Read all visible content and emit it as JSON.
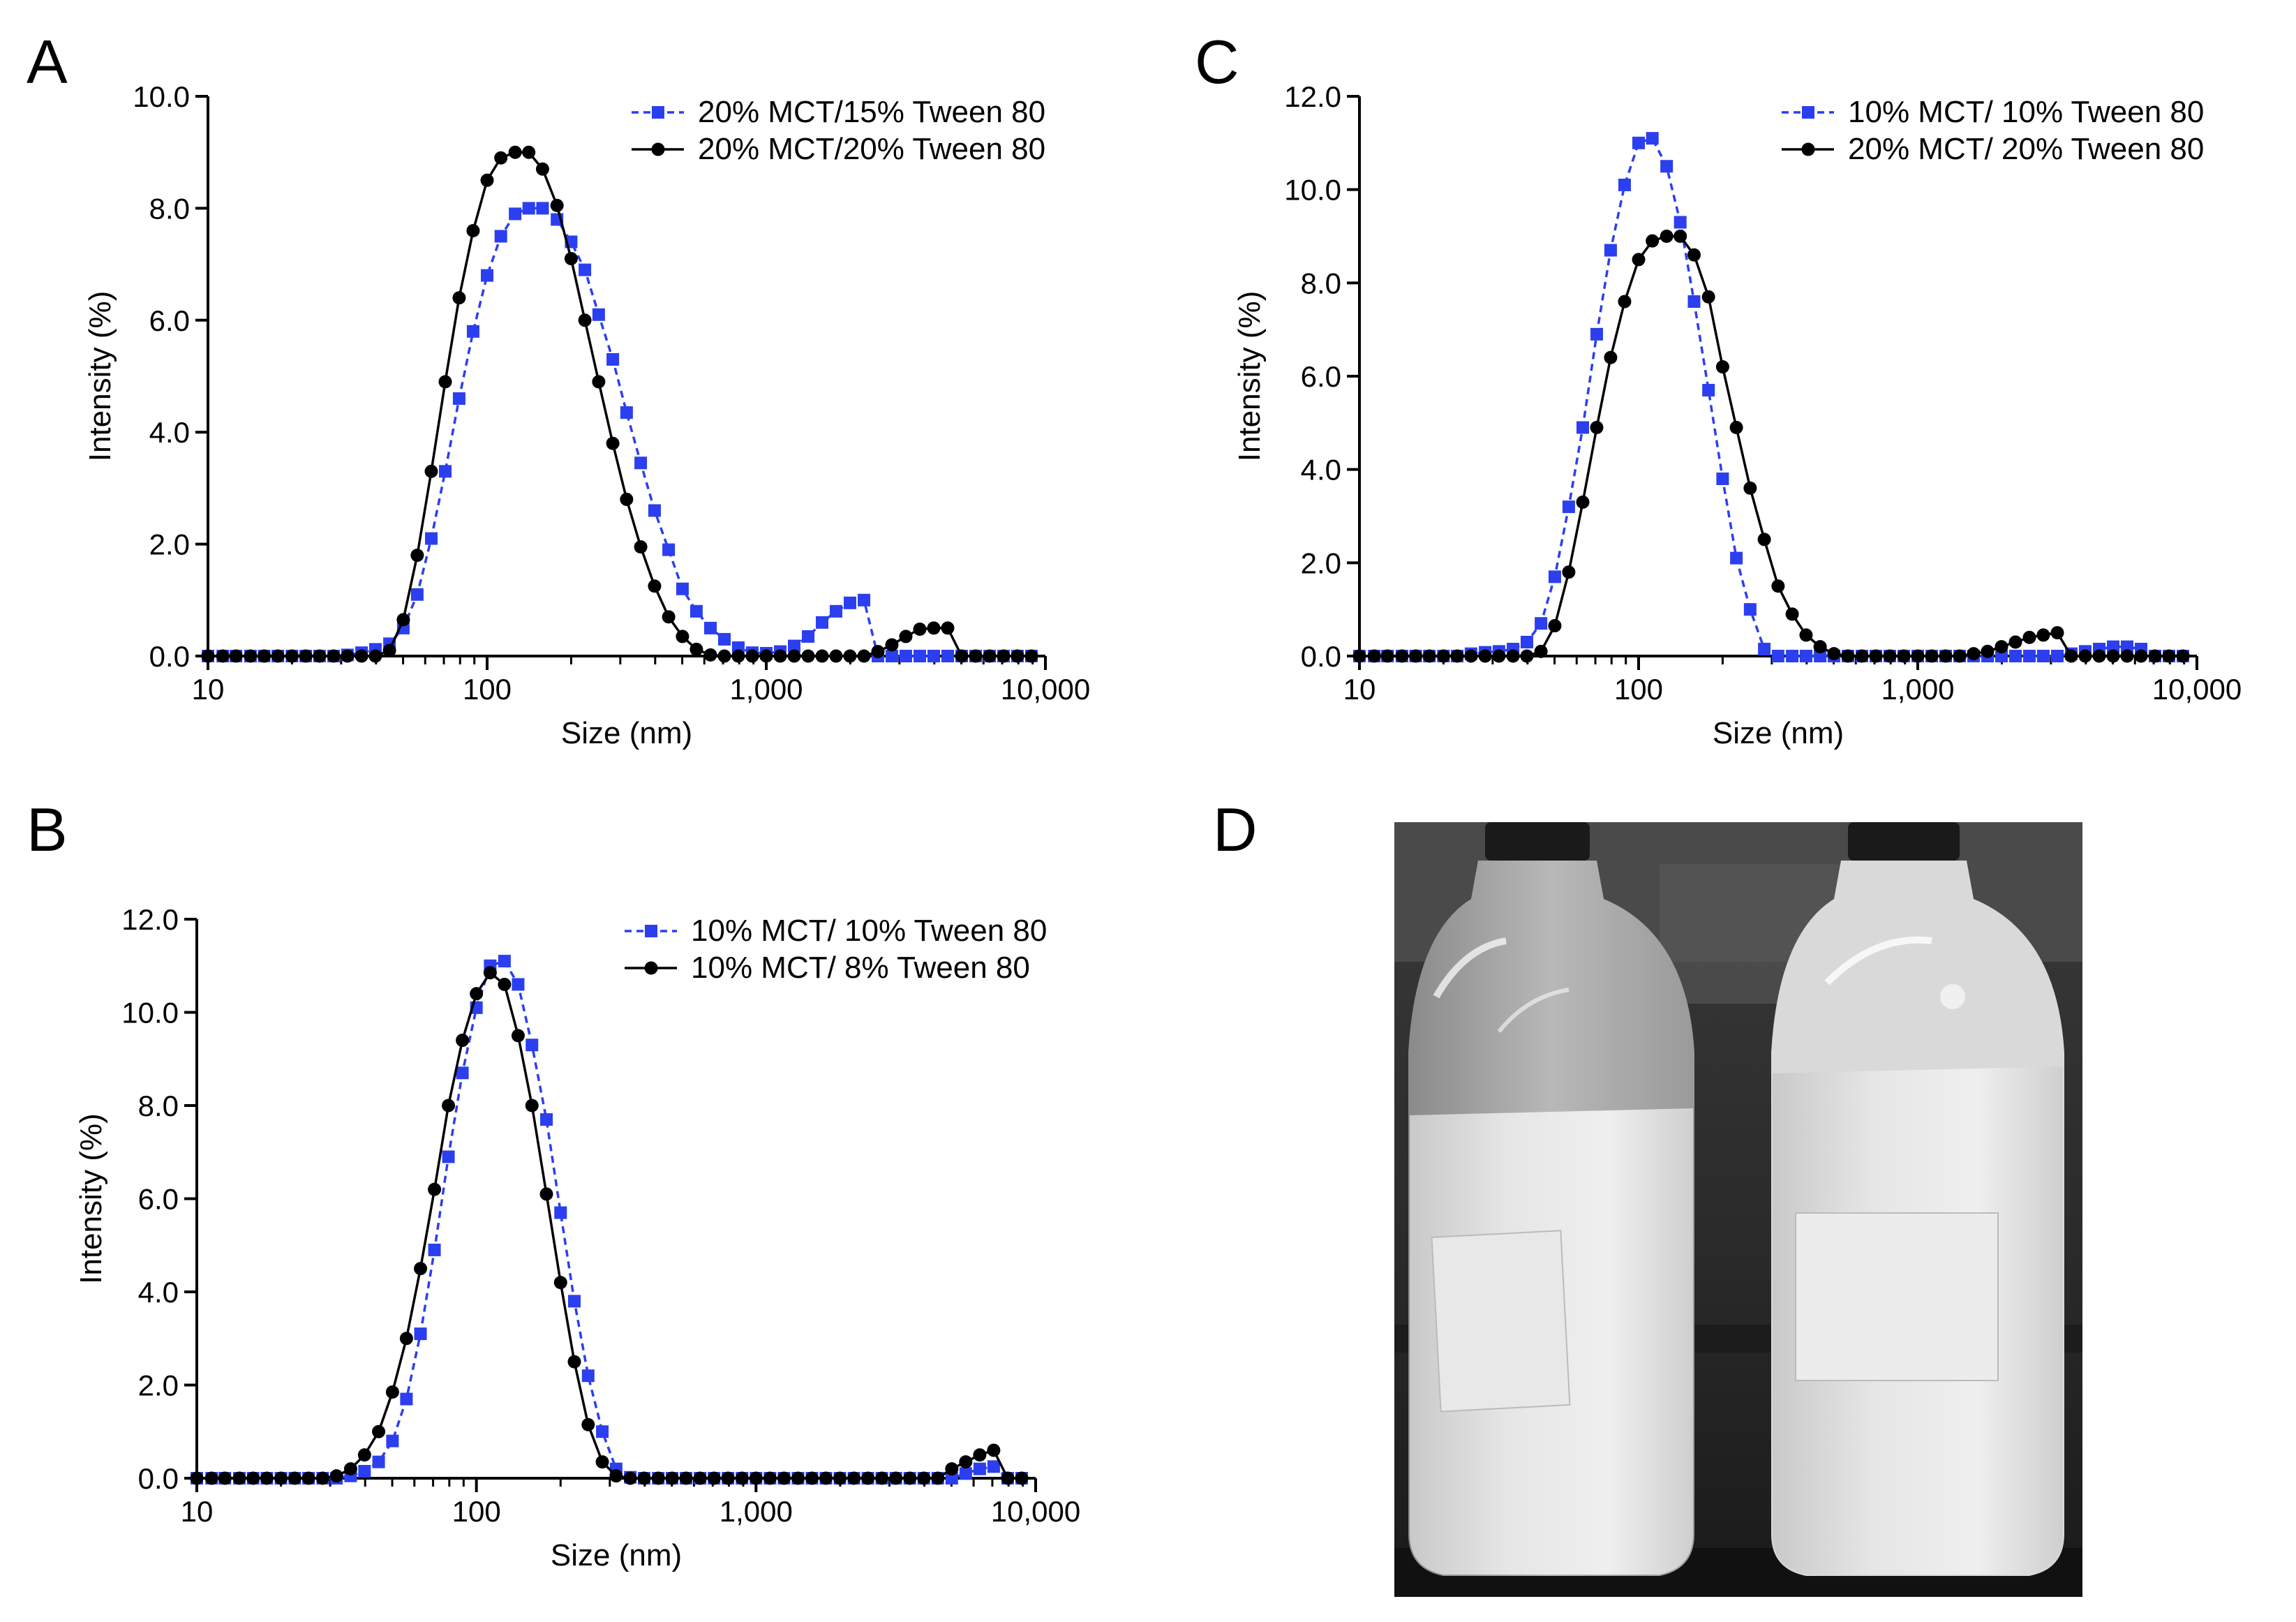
{
  "panels": {
    "a": {
      "letter": "A"
    },
    "b": {
      "letter": "B"
    },
    "c": {
      "letter": "C"
    },
    "d": {
      "letter": "D",
      "description": "Photograph of two glass bottles with milky emulsion"
    }
  },
  "colors": {
    "blue": "#2b3ff0",
    "black": "#000000"
  },
  "chart_data": [
    {
      "panel": "A",
      "type": "line",
      "xscale": "log",
      "xlabel": "Size (nm)",
      "ylabel": "Intensity (%)",
      "xlim": [
        10,
        10000
      ],
      "ylim": [
        0,
        10
      ],
      "yticks": [
        0,
        2,
        4,
        6,
        8,
        10
      ],
      "ytick_labels": [
        "0.0",
        "2.0",
        "4.0",
        "6.0",
        "8.0",
        "10.0"
      ],
      "xticks": [
        10,
        100,
        1000,
        10000
      ],
      "xtick_labels": [
        "10",
        "100",
        "1,000",
        "10,000"
      ],
      "legend_position": "top-right",
      "series": [
        {
          "name": "20% MCT/15% Tween 80",
          "color": "#2b3ff0",
          "marker": "square",
          "dash": true,
          "x": [
            10,
            11.3,
            12.6,
            14.2,
            15.9,
            17.8,
            20,
            22.4,
            25.1,
            28.2,
            31.6,
            35.5,
            39.8,
            44.7,
            50.1,
            56.2,
            63.1,
            70.8,
            79.4,
            89.1,
            100,
            112,
            126,
            141,
            158,
            178,
            200,
            224,
            251,
            282,
            316,
            355,
            398,
            447,
            501,
            562,
            631,
            708,
            794,
            891,
            1000,
            1122,
            1259,
            1413,
            1585,
            1778,
            1995,
            2239,
            2512,
            2818,
            3162,
            3548,
            3981,
            4467,
            5012,
            5623,
            6310,
            7079,
            7943,
            8913
          ],
          "y": [
            0,
            0,
            0,
            0,
            0,
            0,
            0,
            0,
            0,
            0,
            0.02,
            0.06,
            0.12,
            0.22,
            0.5,
            1.1,
            2.1,
            3.3,
            4.6,
            5.8,
            6.8,
            7.5,
            7.9,
            8.0,
            8.0,
            7.8,
            7.4,
            6.9,
            6.1,
            5.3,
            4.35,
            3.45,
            2.6,
            1.9,
            1.2,
            0.8,
            0.5,
            0.3,
            0.15,
            0.06,
            0.05,
            0.08,
            0.18,
            0.35,
            0.6,
            0.8,
            0.95,
            1.0,
            0,
            0,
            0,
            0,
            0,
            0,
            0,
            0,
            0,
            0,
            0,
            0
          ]
        },
        {
          "name": "20% MCT/20% Tween 80",
          "color": "#000000",
          "marker": "circle",
          "dash": false,
          "x": [
            10,
            11.3,
            12.6,
            14.2,
            15.9,
            17.8,
            20,
            22.4,
            25.1,
            28.2,
            31.6,
            35.5,
            39.8,
            44.7,
            50.1,
            56.2,
            63.1,
            70.8,
            79.4,
            89.1,
            100,
            112,
            126,
            141,
            158,
            178,
            200,
            224,
            251,
            282,
            316,
            355,
            398,
            447,
            501,
            562,
            631,
            708,
            794,
            891,
            1000,
            1122,
            1259,
            1413,
            1585,
            1778,
            1995,
            2239,
            2512,
            2818,
            3162,
            3548,
            3981,
            4467,
            5012,
            5623,
            6310,
            7079,
            7943,
            8913
          ],
          "y": [
            0,
            0,
            0,
            0,
            0,
            0,
            0,
            0,
            0,
            0,
            0,
            0,
            0,
            0.1,
            0.65,
            1.8,
            3.3,
            4.9,
            6.4,
            7.6,
            8.5,
            8.9,
            9.0,
            9.0,
            8.7,
            8.05,
            7.1,
            6.0,
            4.9,
            3.8,
            2.8,
            1.95,
            1.25,
            0.7,
            0.35,
            0.12,
            0.02,
            0,
            0,
            0,
            0,
            0,
            0,
            0,
            0,
            0,
            0,
            0,
            0.08,
            0.2,
            0.35,
            0.48,
            0.5,
            0.5,
            0,
            0,
            0,
            0,
            0,
            0
          ]
        }
      ]
    },
    {
      "panel": "B",
      "type": "line",
      "xscale": "log",
      "xlabel": "Size (nm)",
      "ylabel": "Intensity (%)",
      "xlim": [
        10,
        10000
      ],
      "ylim": [
        0,
        12
      ],
      "yticks": [
        0,
        2,
        4,
        6,
        8,
        10,
        12
      ],
      "ytick_labels": [
        "0.0",
        "2.0",
        "4.0",
        "6.0",
        "8.0",
        "10.0",
        "12.0"
      ],
      "xticks": [
        10,
        100,
        1000,
        10000
      ],
      "xtick_labels": [
        "10",
        "100",
        "1,000",
        "10,000"
      ],
      "legend_position": "top-right",
      "series": [
        {
          "name": "10% MCT/ 10% Tween 80",
          "color": "#2b3ff0",
          "marker": "square",
          "dash": true,
          "x": [
            10,
            11.3,
            12.6,
            14.2,
            15.9,
            17.8,
            20,
            22.4,
            25.1,
            28.2,
            31.6,
            35.5,
            39.8,
            44.7,
            50.1,
            56.2,
            63.1,
            70.8,
            79.4,
            89.1,
            100,
            112,
            126,
            141,
            158,
            178,
            200,
            224,
            251,
            282,
            316,
            355,
            398,
            447,
            501,
            562,
            631,
            708,
            794,
            891,
            1000,
            1122,
            1259,
            1413,
            1585,
            1778,
            1995,
            2239,
            2512,
            2818,
            3162,
            3548,
            3981,
            4467,
            5012,
            5623,
            6310,
            7079,
            7943,
            8913
          ],
          "y": [
            0,
            0,
            0,
            0,
            0,
            0,
            0,
            0,
            0,
            0,
            0,
            0.05,
            0.15,
            0.35,
            0.8,
            1.7,
            3.1,
            4.9,
            6.9,
            8.7,
            10.1,
            11.0,
            11.1,
            10.6,
            9.3,
            7.7,
            5.7,
            3.8,
            2.2,
            1.0,
            0.2,
            0.02,
            0,
            0,
            0,
            0,
            0,
            0,
            0,
            0,
            0,
            0,
            0,
            0,
            0,
            0,
            0,
            0,
            0,
            0,
            0,
            0,
            0,
            0,
            0,
            0.1,
            0.2,
            0.25,
            0,
            0
          ]
        },
        {
          "name": "10% MCT/ 8% Tween 80",
          "color": "#000000",
          "marker": "circle",
          "dash": false,
          "x": [
            10,
            11.3,
            12.6,
            14.2,
            15.9,
            17.8,
            20,
            22.4,
            25.1,
            28.2,
            31.6,
            35.5,
            39.8,
            44.7,
            50.1,
            56.2,
            63.1,
            70.8,
            79.4,
            89.1,
            100,
            112,
            126,
            141,
            158,
            178,
            200,
            224,
            251,
            282,
            316,
            355,
            398,
            447,
            501,
            562,
            631,
            708,
            794,
            891,
            1000,
            1122,
            1259,
            1413,
            1585,
            1778,
            1995,
            2239,
            2512,
            2818,
            3162,
            3548,
            3981,
            4467,
            5012,
            5623,
            6310,
            7079,
            7943,
            8913
          ],
          "y": [
            0,
            0,
            0,
            0,
            0,
            0,
            0,
            0,
            0,
            0,
            0.05,
            0.2,
            0.5,
            1.0,
            1.85,
            3.0,
            4.5,
            6.2,
            8.0,
            9.4,
            10.4,
            10.85,
            10.6,
            9.5,
            8.0,
            6.1,
            4.2,
            2.5,
            1.15,
            0.35,
            0.05,
            0,
            0,
            0,
            0,
            0,
            0,
            0,
            0,
            0,
            0,
            0,
            0,
            0,
            0,
            0,
            0,
            0,
            0,
            0,
            0,
            0,
            0,
            0,
            0.2,
            0.35,
            0.5,
            0.6,
            0,
            0
          ]
        }
      ]
    },
    {
      "panel": "C",
      "type": "line",
      "xscale": "log",
      "xlabel": "Size (nm)",
      "ylabel": "Intensity (%)",
      "xlim": [
        10,
        10000
      ],
      "ylim": [
        0,
        12
      ],
      "yticks": [
        0,
        2,
        4,
        6,
        8,
        10,
        12
      ],
      "ytick_labels": [
        "0.0",
        "2.0",
        "4.0",
        "6.0",
        "8.0",
        "10.0",
        "12.0"
      ],
      "xticks": [
        10,
        100,
        1000,
        10000
      ],
      "xtick_labels": [
        "10",
        "100",
        "1,000",
        "10,000"
      ],
      "legend_position": "top-right",
      "series": [
        {
          "name": "10% MCT/ 10% Tween 80",
          "color": "#2b3ff0",
          "marker": "square",
          "dash": true,
          "x": [
            10,
            11.3,
            12.6,
            14.2,
            15.9,
            17.8,
            20,
            22.4,
            25.1,
            28.2,
            31.6,
            35.5,
            39.8,
            44.7,
            50.1,
            56.2,
            63.1,
            70.8,
            79.4,
            89.1,
            100,
            112,
            126,
            141,
            158,
            178,
            200,
            224,
            251,
            282,
            316,
            355,
            398,
            447,
            501,
            562,
            631,
            708,
            794,
            891,
            1000,
            1122,
            1259,
            1413,
            1585,
            1778,
            1995,
            2239,
            2512,
            2818,
            3162,
            3548,
            3981,
            4467,
            5012,
            5623,
            6310,
            7079,
            7943,
            8913
          ],
          "y": [
            0,
            0,
            0,
            0,
            0,
            0,
            0,
            0,
            0.05,
            0.08,
            0.1,
            0.15,
            0.3,
            0.7,
            1.7,
            3.2,
            4.9,
            6.9,
            8.7,
            10.1,
            11.0,
            11.1,
            10.5,
            9.3,
            7.6,
            5.7,
            3.8,
            2.1,
            1.0,
            0.15,
            0,
            0,
            0,
            0,
            0,
            0,
            0,
            0,
            0,
            0,
            0,
            0,
            0,
            0,
            0,
            0,
            0,
            0,
            0,
            0,
            0,
            0.05,
            0.1,
            0.15,
            0.2,
            0.2,
            0.15,
            0,
            0,
            0
          ]
        },
        {
          "name": "20% MCT/ 20% Tween 80",
          "color": "#000000",
          "marker": "circle",
          "dash": false,
          "x": [
            10,
            11.3,
            12.6,
            14.2,
            15.9,
            17.8,
            20,
            22.4,
            25.1,
            28.2,
            31.6,
            35.5,
            39.8,
            44.7,
            50.1,
            56.2,
            63.1,
            70.8,
            79.4,
            89.1,
            100,
            112,
            126,
            141,
            158,
            178,
            200,
            224,
            251,
            282,
            316,
            355,
            398,
            447,
            501,
            562,
            631,
            708,
            794,
            891,
            1000,
            1122,
            1259,
            1413,
            1585,
            1778,
            1995,
            2239,
            2512,
            2818,
            3162,
            3548,
            3981,
            4467,
            5012,
            5623,
            6310,
            7079,
            7943,
            8913
          ],
          "y": [
            0,
            0,
            0,
            0,
            0,
            0,
            0,
            0,
            0,
            0,
            0,
            0,
            0,
            0.1,
            0.65,
            1.8,
            3.3,
            4.9,
            6.4,
            7.6,
            8.5,
            8.9,
            9.0,
            9.0,
            8.6,
            7.7,
            6.2,
            4.9,
            3.6,
            2.5,
            1.5,
            0.9,
            0.45,
            0.2,
            0.05,
            0,
            0,
            0,
            0,
            0,
            0,
            0,
            0,
            0,
            0.05,
            0.1,
            0.2,
            0.3,
            0.4,
            0.45,
            0.5,
            0,
            0,
            0,
            0,
            0,
            0,
            0,
            0,
            0
          ]
        }
      ]
    }
  ]
}
